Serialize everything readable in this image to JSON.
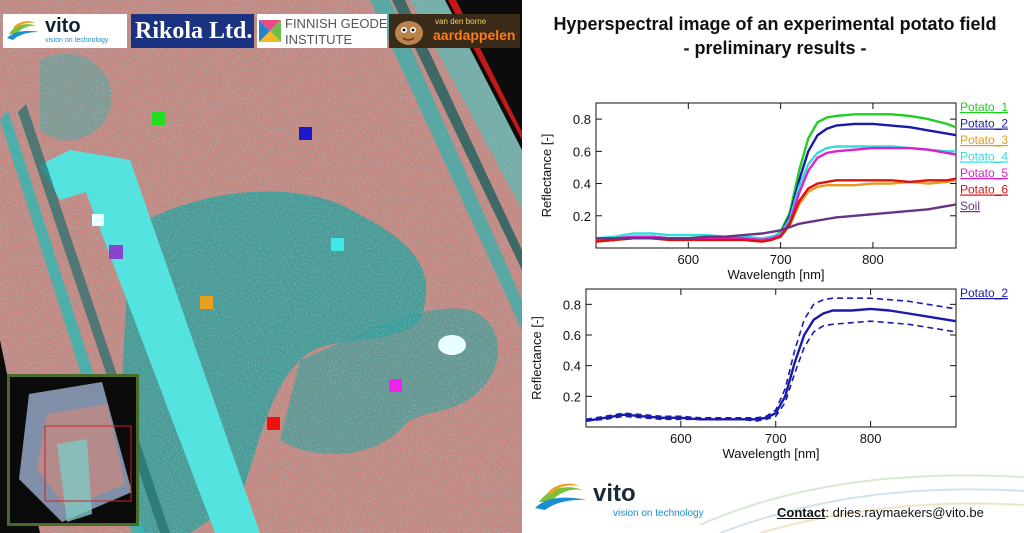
{
  "logos": {
    "vito_small": {
      "name": "vito",
      "tagline": "vision on technology"
    },
    "rikola": "Rikola Ltd.",
    "fgi_line1": "FINNISH GEODETIC",
    "fgi_line2": "INSTITUTE",
    "vdb_top": "van den borne",
    "vdb_main": "aardappelen"
  },
  "title": {
    "line1": "Hyperspectral image of an experimental potato field",
    "line2": "- preliminary results -"
  },
  "footer": {
    "vito_name": "vito",
    "vito_tagline": "vision on technology",
    "contact_label": "Contact",
    "contact_rest": ": dries.raymaekers@vito.be"
  },
  "marker_colors": [
    "#22dd22",
    "#1a1acc",
    "#e8a020",
    "#3ee8e8",
    "#ee22ee",
    "#ee1111",
    "#8844cc"
  ],
  "chart_data": [
    {
      "type": "line",
      "xlabel": "Wavelength [nm]",
      "ylabel": "Reflectance [-]",
      "xlim": [
        500,
        890
      ],
      "ylim": [
        0,
        0.9
      ],
      "xticks": [
        600,
        700,
        800
      ],
      "yticks": [
        0.2,
        0.4,
        0.6,
        0.8
      ],
      "x": [
        500,
        520,
        540,
        560,
        580,
        600,
        620,
        640,
        660,
        680,
        690,
        700,
        710,
        720,
        730,
        740,
        750,
        760,
        780,
        800,
        820,
        840,
        860,
        880,
        890
      ],
      "series": [
        {
          "name": "Potato_1",
          "color": "#22cc22",
          "values": [
            0.04,
            0.05,
            0.07,
            0.07,
            0.06,
            0.06,
            0.06,
            0.06,
            0.06,
            0.05,
            0.06,
            0.1,
            0.22,
            0.48,
            0.68,
            0.78,
            0.81,
            0.82,
            0.83,
            0.83,
            0.83,
            0.82,
            0.8,
            0.77,
            0.75
          ]
        },
        {
          "name": "Potato_2",
          "color": "#1a1aaa",
          "values": [
            0.04,
            0.05,
            0.07,
            0.07,
            0.06,
            0.06,
            0.06,
            0.06,
            0.06,
            0.05,
            0.06,
            0.09,
            0.2,
            0.42,
            0.6,
            0.7,
            0.74,
            0.76,
            0.77,
            0.77,
            0.76,
            0.75,
            0.73,
            0.71,
            0.7
          ]
        },
        {
          "name": "Potato_3",
          "color": "#e89a20",
          "values": [
            0.04,
            0.05,
            0.06,
            0.06,
            0.05,
            0.05,
            0.05,
            0.05,
            0.05,
            0.04,
            0.05,
            0.07,
            0.14,
            0.27,
            0.35,
            0.38,
            0.39,
            0.39,
            0.39,
            0.4,
            0.4,
            0.41,
            0.4,
            0.41,
            0.42
          ]
        },
        {
          "name": "Potato_4",
          "color": "#33dddd",
          "values": [
            0.06,
            0.07,
            0.09,
            0.09,
            0.08,
            0.08,
            0.08,
            0.07,
            0.07,
            0.06,
            0.07,
            0.09,
            0.18,
            0.38,
            0.52,
            0.59,
            0.62,
            0.63,
            0.63,
            0.63,
            0.63,
            0.62,
            0.61,
            0.6,
            0.6
          ]
        },
        {
          "name": "Potato_5",
          "color": "#dd22cc",
          "values": [
            0.05,
            0.06,
            0.07,
            0.07,
            0.06,
            0.06,
            0.06,
            0.06,
            0.06,
            0.05,
            0.06,
            0.08,
            0.16,
            0.34,
            0.48,
            0.56,
            0.59,
            0.6,
            0.61,
            0.62,
            0.62,
            0.62,
            0.61,
            0.59,
            0.58
          ]
        },
        {
          "name": "Potato_6",
          "color": "#dd1111",
          "values": [
            0.04,
            0.05,
            0.06,
            0.06,
            0.05,
            0.05,
            0.05,
            0.05,
            0.05,
            0.04,
            0.05,
            0.07,
            0.15,
            0.29,
            0.37,
            0.4,
            0.41,
            0.42,
            0.42,
            0.42,
            0.42,
            0.41,
            0.42,
            0.42,
            0.43
          ]
        },
        {
          "name": "Soil",
          "color": "#663388",
          "values": [
            0.06,
            0.06,
            0.06,
            0.06,
            0.06,
            0.06,
            0.07,
            0.07,
            0.08,
            0.09,
            0.1,
            0.11,
            0.13,
            0.15,
            0.16,
            0.17,
            0.18,
            0.19,
            0.2,
            0.21,
            0.22,
            0.23,
            0.24,
            0.26,
            0.27
          ]
        }
      ]
    },
    {
      "type": "line",
      "xlabel": "Wavelength [nm]",
      "ylabel": "Reflectance [-]",
      "xlim": [
        500,
        890
      ],
      "ylim": [
        0,
        0.9
      ],
      "xticks": [
        600,
        700,
        800
      ],
      "yticks": [
        0.2,
        0.4,
        0.6,
        0.8
      ],
      "x": [
        500,
        520,
        540,
        560,
        580,
        600,
        620,
        640,
        660,
        680,
        690,
        700,
        710,
        720,
        730,
        740,
        750,
        760,
        780,
        800,
        820,
        840,
        860,
        880,
        890
      ],
      "series": [
        {
          "name": "Potato_2",
          "color": "#1a1aaa",
          "style": "solid",
          "values": [
            0.04,
            0.06,
            0.08,
            0.07,
            0.06,
            0.06,
            0.05,
            0.05,
            0.05,
            0.05,
            0.06,
            0.09,
            0.2,
            0.42,
            0.6,
            0.7,
            0.74,
            0.76,
            0.76,
            0.77,
            0.76,
            0.74,
            0.72,
            0.7,
            0.69
          ]
        },
        {
          "name": "",
          "color": "#1a1aaa",
          "style": "dashed",
          "values": [
            0.05,
            0.07,
            0.09,
            0.08,
            0.07,
            0.07,
            0.06,
            0.06,
            0.06,
            0.06,
            0.07,
            0.11,
            0.25,
            0.5,
            0.7,
            0.8,
            0.83,
            0.84,
            0.84,
            0.84,
            0.83,
            0.82,
            0.8,
            0.78,
            0.77
          ]
        },
        {
          "name": "",
          "color": "#1a1aaa",
          "style": "dashed",
          "values": [
            0.04,
            0.05,
            0.07,
            0.06,
            0.05,
            0.05,
            0.05,
            0.05,
            0.05,
            0.04,
            0.05,
            0.07,
            0.16,
            0.35,
            0.52,
            0.62,
            0.66,
            0.67,
            0.68,
            0.69,
            0.68,
            0.67,
            0.65,
            0.63,
            0.62
          ]
        }
      ]
    }
  ]
}
